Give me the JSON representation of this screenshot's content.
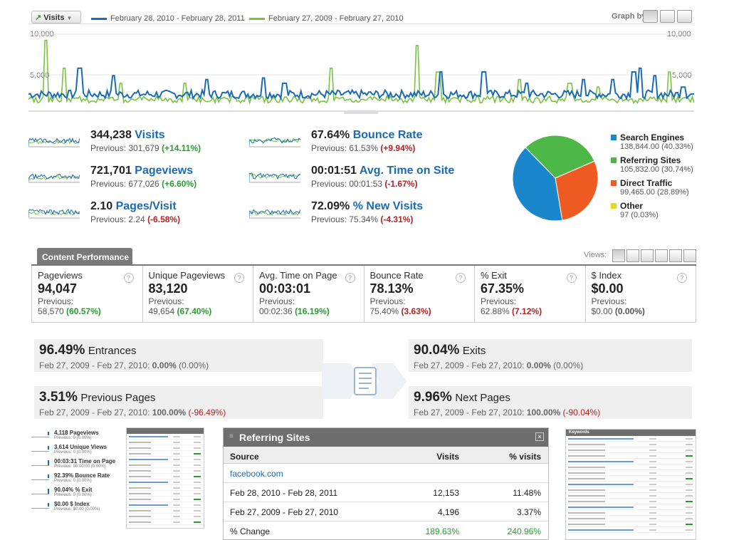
{
  "graph": {
    "metric_dropdown": "Visits",
    "legend": [
      {
        "label": "February 28, 2010 - February 28, 2011",
        "color": "#1a6bb5"
      },
      {
        "label": "February 27, 2009 - February 27, 2010",
        "color": "#7cc242"
      }
    ],
    "graph_by_label": "Graph by:",
    "y_top": "10,000",
    "y_mid": "5,000"
  },
  "metrics": [
    {
      "value": "344,238",
      "label": "Visits",
      "prev_label": "Previous: 301,679",
      "change": "(+14.11%)",
      "good": true
    },
    {
      "value": "721,701",
      "label": "Pageviews",
      "prev_label": "Previous: 677,026",
      "change": "(+6.60%)",
      "good": true
    },
    {
      "value": "2.10",
      "label": "Pages/Visit",
      "prev_label": "Previous: 2.24",
      "change": "(-6.58%)",
      "good": false
    },
    {
      "value": "67.64%",
      "label": "Bounce Rate",
      "prev_label": "Previous: 61.53%",
      "change": "(+9.94%)",
      "good": false
    },
    {
      "value": "00:01:51",
      "label": "Avg. Time on Site",
      "prev_label": "Previous: 00:01:53",
      "change": "(-1.67%)",
      "good": false
    },
    {
      "value": "72.09%",
      "label": "% New Visits",
      "prev_label": "Previous: 75.34%",
      "change": "(-4.31%)",
      "good": false
    }
  ],
  "sources": [
    {
      "name": "Search Engines",
      "detail": "138,844.00 (40.33%)",
      "percent": 40.33,
      "color": "#1a87cc"
    },
    {
      "name": "Referring Sites",
      "detail": "105,832.00 (30.74%)",
      "percent": 30.74,
      "color": "#4db847"
    },
    {
      "name": "Direct Traffic",
      "detail": "99,465.00 (28.89%)",
      "percent": 28.89,
      "color": "#ef5a22"
    },
    {
      "name": "Other",
      "detail": "97 (0.03%)",
      "percent": 0.03,
      "color": "#e8d81a"
    }
  ],
  "content_performance": {
    "tab": "Content Performance",
    "views_label": "Views:",
    "cells": [
      {
        "title": "Pageviews",
        "value": "94,047",
        "prev": "Previous:",
        "prev_val": "58,570",
        "change": "(60.57%)",
        "good": true
      },
      {
        "title": "Unique Pageviews",
        "value": "83,120",
        "prev": "Previous:",
        "prev_val": "49,654",
        "change": "(67.40%)",
        "good": true
      },
      {
        "title": "Avg. Time on Page",
        "value": "00:03:01",
        "prev": "Previous:",
        "prev_val": "00:02:36",
        "change": "(16.19%)",
        "good": true
      },
      {
        "title": "Bounce Rate",
        "value": "78.13%",
        "prev": "Previous:",
        "prev_val": "75.40%",
        "change": "(3.63%)",
        "good": false
      },
      {
        "title": "% Exit",
        "value": "67.35%",
        "prev": "Previous:",
        "prev_val": "62.88%",
        "change": "(7.12%)",
        "good": false
      },
      {
        "title": "$ Index",
        "value": "$0.00",
        "prev": "Previous:",
        "prev_val": "$0.00",
        "change": "(0.00%)",
        "good": null
      }
    ]
  },
  "navigation": {
    "entrances": {
      "value": "96.49%",
      "label": "Entrances",
      "range": "Feb 27, 2009 - Feb 27, 2010:",
      "prev": "0.00%",
      "change": "(0.00%)"
    },
    "exits": {
      "value": "90.04%",
      "label": "Exits",
      "range": "Feb 27, 2009 - Feb 27, 2010:",
      "prev": "0.00%",
      "change": "(0.00%)"
    },
    "previous_pages": {
      "value": "3.51%",
      "label": "Previous Pages",
      "range": "Feb 27, 2009 - Feb 27, 2010:",
      "prev": "100.00%",
      "change": "(-96.49%)"
    },
    "next_pages": {
      "value": "9.96%",
      "label": "Next Pages",
      "range": "Feb 27, 2009 - Feb 27, 2010:",
      "prev": "100.00%",
      "change": "(-90.04%)"
    }
  },
  "mini_metrics": [
    {
      "label": "4,118 Pageviews",
      "prev": "Previous: 0 (0.00%)"
    },
    {
      "label": "3,614 Unique Views",
      "prev": "Previous: 0 (0.00%)"
    },
    {
      "label": "00:03:31 Time on Page",
      "prev": "Previous: 00:00:00 (0.00%)"
    },
    {
      "label": "92.39% Bounce Rate",
      "prev": "Previous: 0 (0.00%)"
    },
    {
      "label": "90.04% % Exit",
      "prev": "Previous: 0 (0.00%)"
    },
    {
      "label": "$0.00 $ Index",
      "prev": "Previous: $0.00 (0.00%)"
    }
  ],
  "referring_sites": {
    "title": "Referring Sites",
    "headers": [
      "Source",
      "Visits",
      "% visits"
    ],
    "source": "facebook.com",
    "rows": [
      {
        "label": "Feb 28, 2010 - Feb 28, 2011",
        "visits": "12,153",
        "pct": "11.48%"
      },
      {
        "label": "Feb 27, 2009 - Feb 27, 2010",
        "visits": "4,196",
        "pct": "3.37%"
      },
      {
        "label": "% Change",
        "visits": "189.63%",
        "pct": "240.96%"
      }
    ]
  },
  "keywords": {
    "title": "Keywords"
  }
}
